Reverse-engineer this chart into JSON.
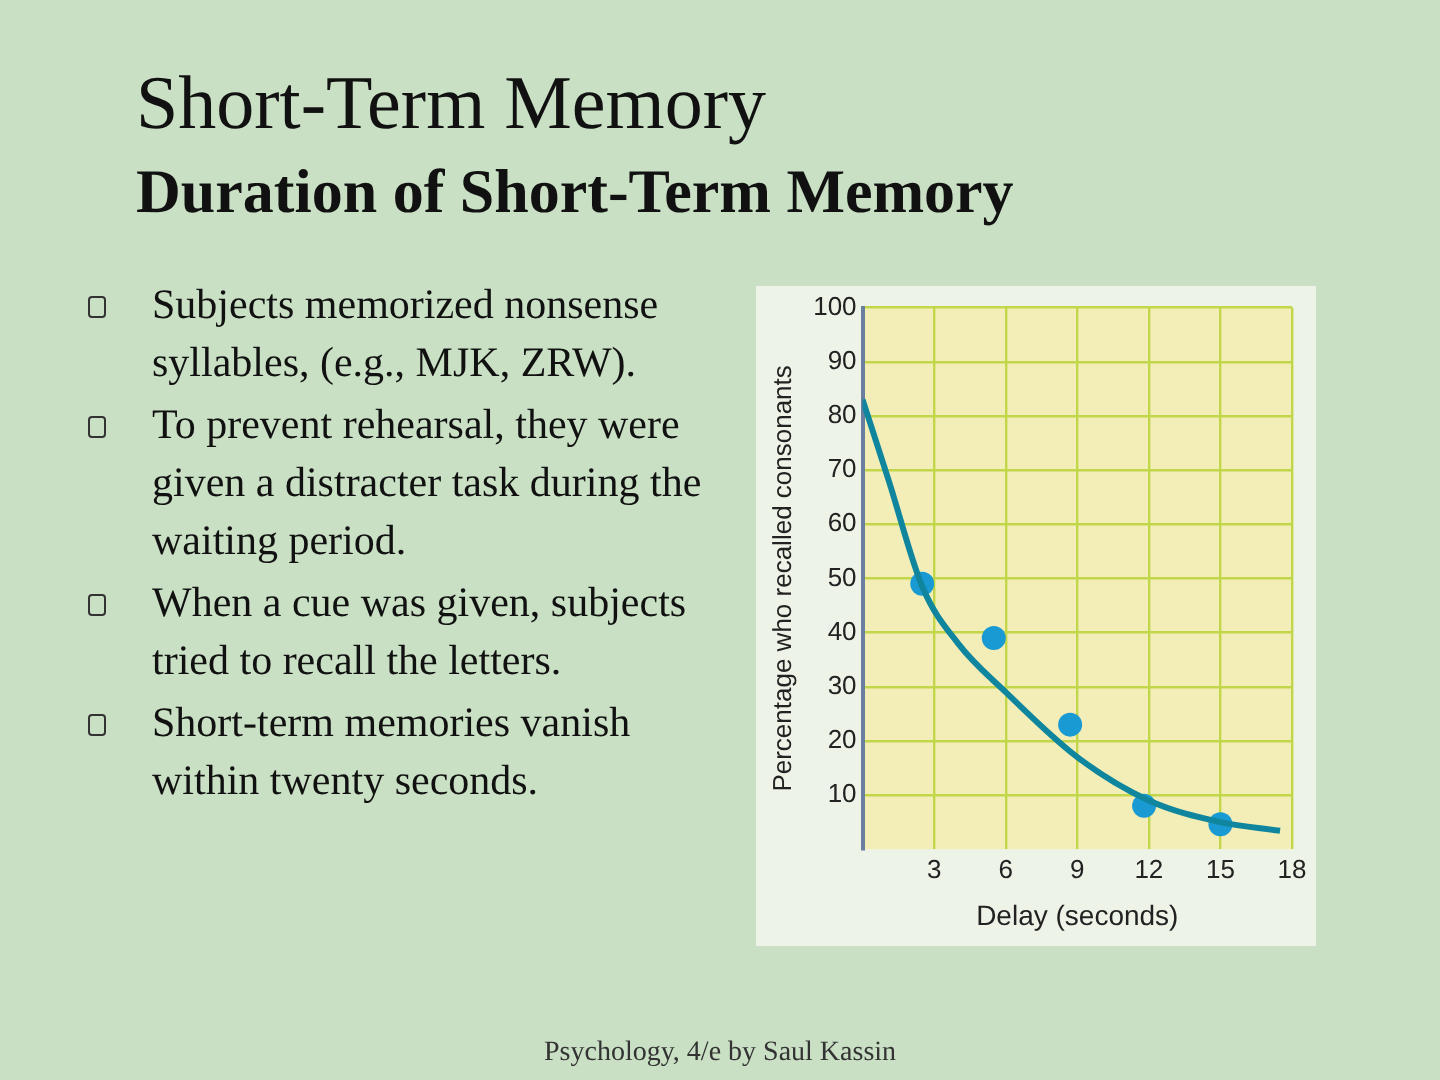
{
  "chart_data": {
    "type": "scatter",
    "title": "Short-Term Memory",
    "subtitle": "Duration of Short-Term Memory",
    "xlabel": "Delay (seconds)",
    "ylabel": "Percentage who recalled consonants",
    "annotations": [
      "Subjects memorized nonsense syllables, (e.g., MJK, ZRW).",
      "To prevent rehearsal, they were given a distracter task during the waiting period.",
      "When a cue was given, subjects tried to recall the letters.",
      "Short-term memories vanish within twenty seconds.",
      "Psychology, 4/e by Saul Kassin"
    ],
    "series": [
      {
        "type": "line",
        "color": "#10869e",
        "x": [
          0,
          1.1,
          2.5,
          4,
          6,
          9,
          12,
          15,
          17.5
        ],
        "values": [
          83,
          68,
          48.5,
          38,
          29,
          17,
          9,
          5,
          3.4
        ],
        "marker": "none"
      },
      {
        "type": "scatter",
        "color": "#1a9ad2",
        "x": [
          2.5,
          5.5,
          8.7,
          11.8,
          15
        ],
        "values": [
          49,
          39,
          23,
          8,
          4.6
        ],
        "marker": "circle"
      }
    ],
    "xlim": [
      0,
      18
    ],
    "ylim": [
      0,
      100
    ],
    "xticks": [
      3,
      6,
      9,
      12,
      15,
      18
    ],
    "yticks": [
      10,
      20,
      30,
      40,
      50,
      60,
      70,
      80,
      90,
      100
    ],
    "grid": true,
    "legend": false
  }
}
